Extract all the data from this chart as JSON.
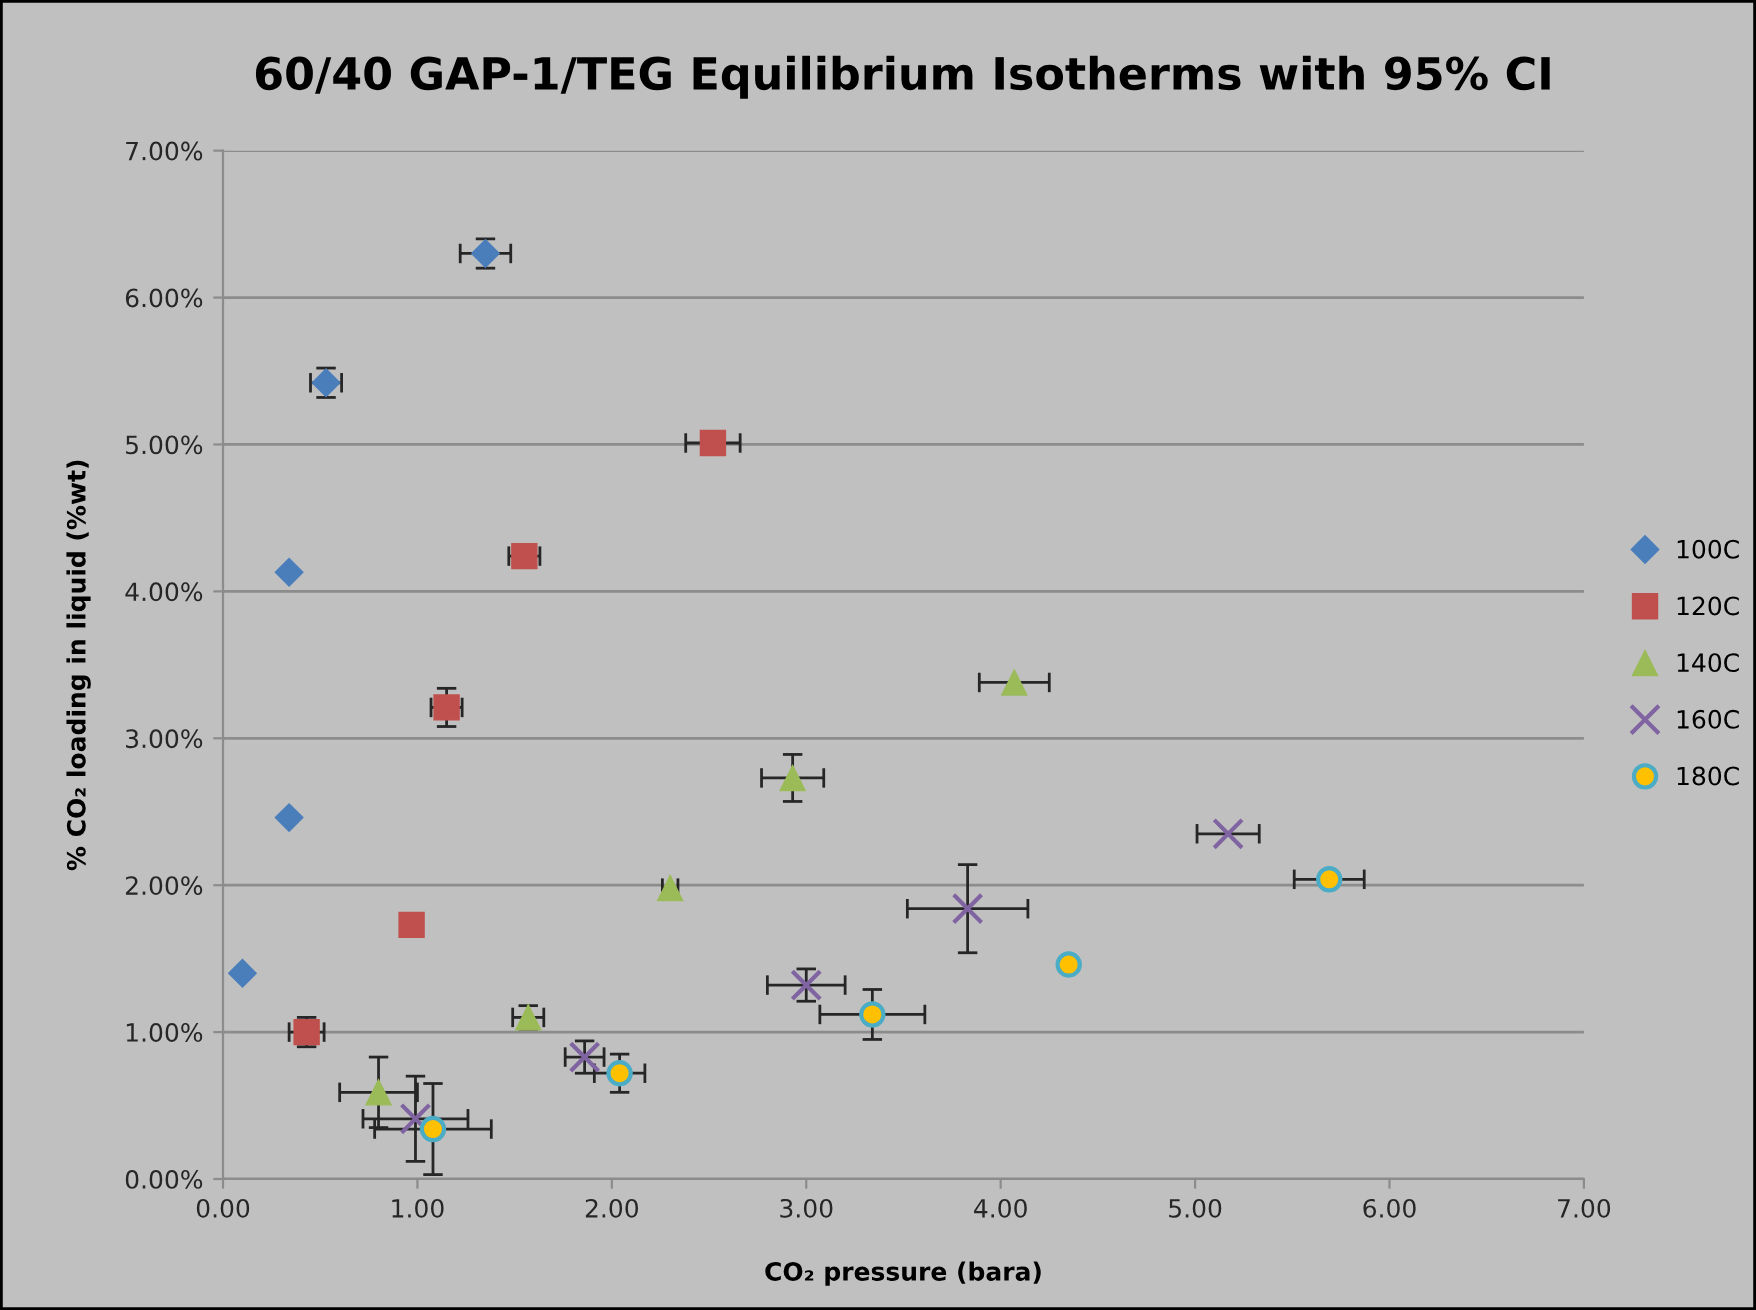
{
  "chart_data": {
    "type": "scatter",
    "title": "60/40 GAP-1/TEG Equilibrium Isotherms with 95% CI",
    "xlabel": "CO₂ pressure (bara)",
    "ylabel": "% CO₂ loading in liquid (%wt)",
    "xlim": [
      0,
      7
    ],
    "xticks": [
      {
        "value": 0,
        "label": "0.00"
      },
      {
        "value": 1,
        "label": "1.00"
      },
      {
        "value": 2,
        "label": "2.00"
      },
      {
        "value": 3,
        "label": "3.00"
      },
      {
        "value": 4,
        "label": "4.00"
      },
      {
        "value": 5,
        "label": "5.00"
      },
      {
        "value": 6,
        "label": "6.00"
      },
      {
        "value": 7,
        "label": "7.00"
      }
    ],
    "ylim": [
      0,
      7
    ],
    "yticks": [
      {
        "value": 0,
        "label": "0.00%"
      },
      {
        "value": 1,
        "label": "1.00%"
      },
      {
        "value": 2,
        "label": "2.00%"
      },
      {
        "value": 3,
        "label": "3.00%"
      },
      {
        "value": 4,
        "label": "4.00%"
      },
      {
        "value": 5,
        "label": "5.00%"
      },
      {
        "value": 6,
        "label": "6.00%"
      },
      {
        "value": 7,
        "label": "7.00%"
      }
    ],
    "grid": "y",
    "legend": "right",
    "series": [
      {
        "name": "100C",
        "color": "#4a7ebb",
        "marker": "diamond",
        "x": [
          0.1,
          0.34,
          0.34,
          0.53,
          1.35
        ],
        "values": [
          1.4,
          2.46,
          4.13,
          5.42,
          6.3
        ],
        "errors": [
          null,
          null,
          null,
          0.1,
          0.1
        ],
        "xerrors": [
          null,
          null,
          null,
          0.08,
          0.13
        ]
      },
      {
        "name": "120C",
        "color": "#c0504d",
        "marker": "square",
        "x": [
          0.43,
          0.97,
          1.15,
          1.55,
          2.52
        ],
        "values": [
          1.0,
          1.73,
          3.21,
          4.24,
          5.01
        ],
        "errors": [
          0.1,
          null,
          0.13,
          null,
          null
        ],
        "xerrors": [
          0.09,
          null,
          0.08,
          0.08,
          0.14
        ]
      },
      {
        "name": "140C",
        "color": "#9bbb59",
        "marker": "triangle",
        "x": [
          0.8,
          1.57,
          2.3,
          2.93,
          4.07
        ],
        "values": [
          0.59,
          1.1,
          1.98,
          2.73,
          3.38
        ],
        "errors": [
          0.24,
          0.08,
          null,
          0.16,
          null
        ],
        "xerrors": [
          0.2,
          0.08,
          0.04,
          0.16,
          0.18
        ]
      },
      {
        "name": "160C",
        "color": "#8064a2",
        "marker": "cross",
        "x": [
          0.99,
          1.86,
          3.0,
          3.83,
          5.17
        ],
        "values": [
          0.41,
          0.83,
          1.32,
          1.84,
          2.35
        ],
        "errors": [
          0.29,
          0.11,
          0.11,
          0.3,
          null
        ],
        "xerrors": [
          0.27,
          0.1,
          0.2,
          0.31,
          0.16
        ]
      },
      {
        "name": "180C",
        "color": "#ffc000",
        "marker": "circle",
        "x": [
          1.08,
          2.04,
          3.34,
          4.35,
          5.69
        ],
        "values": [
          0.34,
          0.72,
          1.12,
          1.46,
          2.04
        ],
        "errors": [
          0.31,
          0.13,
          0.17,
          null,
          null
        ],
        "xerrors": [
          0.3,
          0.13,
          0.27,
          null,
          0.18
        ]
      }
    ]
  }
}
